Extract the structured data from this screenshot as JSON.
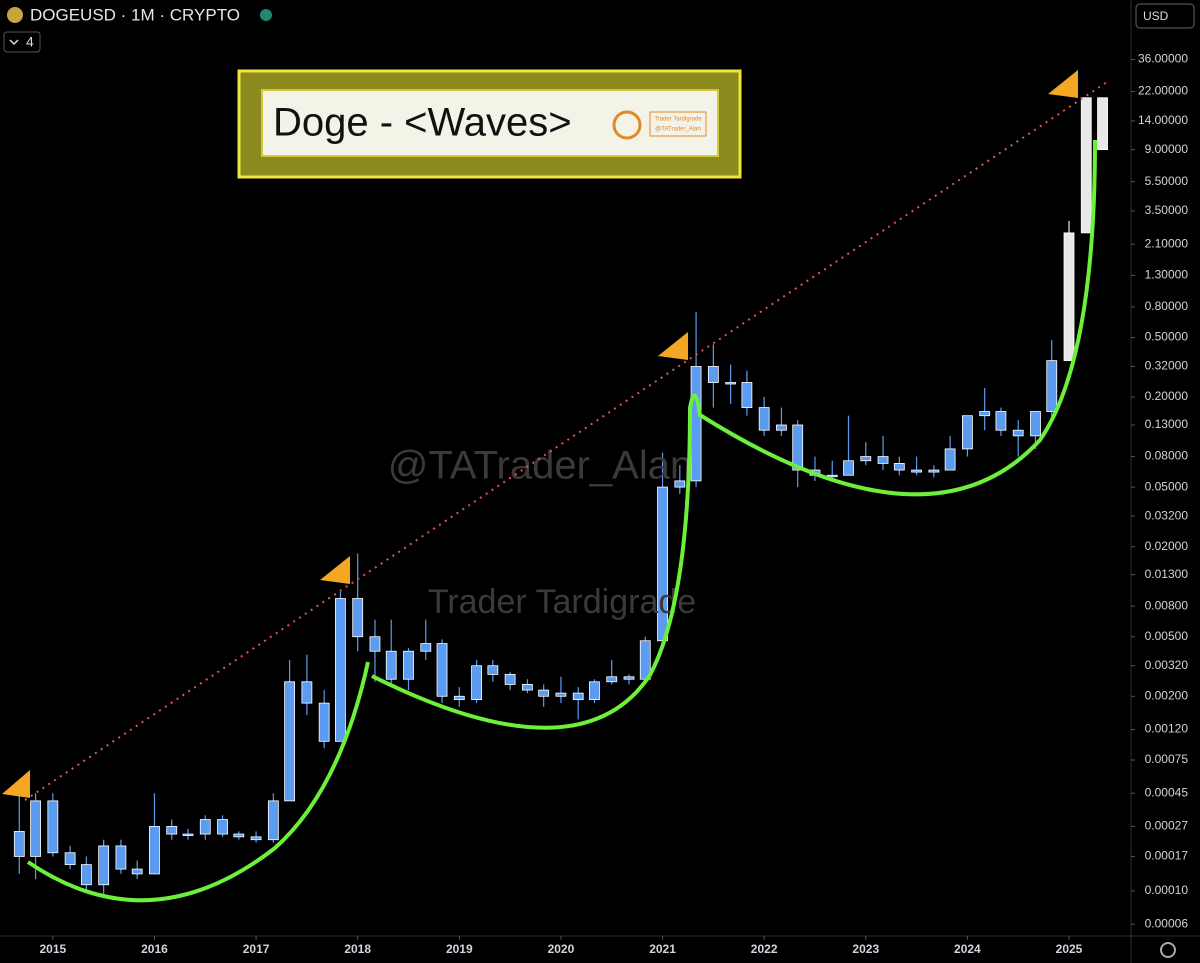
{
  "chart_data": {
    "type": "candlestick",
    "symbol": "DOGEUSD · 1M · CRYPTO",
    "interval_badge": "4",
    "currency": "USD",
    "title": "Doge - <Waves>",
    "logo_text": [
      "Trader Tardigrade",
      "@TATrader_Alan"
    ],
    "watermarks": [
      "@TATrader_Alan",
      "Trader Tardigrade"
    ],
    "log_scale": true,
    "xlim": [
      2014.48,
      2025.61
    ],
    "xticks": [
      2015,
      2016,
      2017,
      2018,
      2019,
      2020,
      2021,
      2022,
      2023,
      2024,
      2025
    ],
    "ylim": [
      5e-05,
      90
    ],
    "yticks": [
      {
        "value": 36,
        "label": "36.00000"
      },
      {
        "value": 22,
        "label": "22.00000"
      },
      {
        "value": 14,
        "label": "14.00000"
      },
      {
        "value": 9,
        "label": "9.00000"
      },
      {
        "value": 5.5,
        "label": "5.50000"
      },
      {
        "value": 3.5,
        "label": "3.50000"
      },
      {
        "value": 2.1,
        "label": "2.10000"
      },
      {
        "value": 1.3,
        "label": "1.30000"
      },
      {
        "value": 0.8,
        "label": "0.80000"
      },
      {
        "value": 0.5,
        "label": "0.50000"
      },
      {
        "value": 0.32,
        "label": "0.32000"
      },
      {
        "value": 0.2,
        "label": "0.20000"
      },
      {
        "value": 0.13,
        "label": "0.13000"
      },
      {
        "value": 0.08,
        "label": "0.08000"
      },
      {
        "value": 0.05,
        "label": "0.05000"
      },
      {
        "value": 0.032,
        "label": "0.03200"
      },
      {
        "value": 0.02,
        "label": "0.02000"
      },
      {
        "value": 0.013,
        "label": "0.01300"
      },
      {
        "value": 0.008,
        "label": "0.00800"
      },
      {
        "value": 0.005,
        "label": "0.00500"
      },
      {
        "value": 0.0032,
        "label": "0.00320"
      },
      {
        "value": 0.002,
        "label": "0.00200"
      },
      {
        "value": 0.0012,
        "label": "0.00120"
      },
      {
        "value": 0.00075,
        "label": "0.00075"
      },
      {
        "value": 0.00045,
        "label": "0.00045"
      },
      {
        "value": 0.00027,
        "label": "0.00027"
      },
      {
        "value": 0.00017,
        "label": "0.00017"
      },
      {
        "value": 0.0001,
        "label": "0.00010"
      },
      {
        "value": 6e-05,
        "label": "0.00006"
      }
    ],
    "series": [
      {
        "color": "#5b9cf0",
        "x": [
          2014.67,
          2014.83,
          2015.0,
          2015.17,
          2015.33,
          2015.5,
          2015.67,
          2015.83,
          2016.0,
          2016.17,
          2016.33,
          2016.5,
          2016.67,
          2016.83,
          2017.0,
          2017.17,
          2017.33,
          2017.5,
          2017.67,
          2017.83,
          2018.0,
          2018.17,
          2018.33,
          2018.5,
          2018.67,
          2018.83,
          2019.0,
          2019.17,
          2019.33,
          2019.5,
          2019.67,
          2019.83,
          2020.0,
          2020.17,
          2020.33,
          2020.5,
          2020.67,
          2020.83,
          2021.0,
          2021.17,
          2021.33,
          2021.5,
          2021.67,
          2021.83,
          2022.0,
          2022.17,
          2022.33,
          2022.5,
          2022.67,
          2022.83,
          2023.0,
          2023.17,
          2023.33,
          2023.5,
          2023.67,
          2023.83,
          2024.0,
          2024.17,
          2024.33,
          2024.5,
          2024.67,
          2024.83
        ],
        "open": [
          0.00025,
          0.00017,
          0.0004,
          0.00018,
          0.00015,
          0.00011,
          0.0002,
          0.00014,
          0.00013,
          0.00027,
          0.00024,
          0.00024,
          0.0003,
          0.00024,
          0.00023,
          0.00022,
          0.0004,
          0.0025,
          0.0018,
          0.001,
          0.009,
          0.005,
          0.004,
          0.0026,
          0.004,
          0.0045,
          0.002,
          0.0019,
          0.0032,
          0.0028,
          0.0024,
          0.0022,
          0.002,
          0.0021,
          0.0019,
          0.0025,
          0.0027,
          0.0026,
          0.0047,
          0.05,
          0.055,
          0.32,
          0.25,
          0.25,
          0.17,
          0.12,
          0.13,
          0.065,
          0.06,
          0.06,
          0.075,
          0.08,
          0.072,
          0.065,
          0.063,
          0.065,
          0.09,
          0.15,
          0.16,
          0.12,
          0.11,
          0.16
        ],
        "high": [
          0.00045,
          0.00045,
          0.00045,
          0.0002,
          0.00017,
          0.00022,
          0.00022,
          0.00016,
          0.00045,
          0.0003,
          0.00026,
          0.00032,
          0.00032,
          0.00025,
          0.00025,
          0.00045,
          0.0035,
          0.0038,
          0.0022,
          0.01,
          0.018,
          0.0065,
          0.0065,
          0.0042,
          0.0065,
          0.0048,
          0.0023,
          0.0035,
          0.0035,
          0.0029,
          0.0026,
          0.0024,
          0.0027,
          0.0023,
          0.0026,
          0.0035,
          0.0028,
          0.005,
          0.085,
          0.07,
          0.74,
          0.45,
          0.33,
          0.3,
          0.2,
          0.17,
          0.14,
          0.08,
          0.075,
          0.15,
          0.1,
          0.11,
          0.08,
          0.08,
          0.07,
          0.11,
          0.12,
          0.23,
          0.17,
          0.14,
          0.16,
          0.48
        ],
        "low": [
          0.00013,
          0.00012,
          0.00017,
          0.00014,
          0.0001,
          9e-05,
          0.00013,
          0.00012,
          0.00013,
          0.00022,
          0.00022,
          0.00022,
          0.00023,
          0.00022,
          0.00021,
          0.00021,
          0.0004,
          0.0015,
          0.0009,
          0.001,
          0.004,
          0.0025,
          0.0024,
          0.0022,
          0.0035,
          0.0018,
          0.0017,
          0.0018,
          0.0025,
          0.0022,
          0.0021,
          0.0017,
          0.0018,
          0.0014,
          0.0018,
          0.0024,
          0.0024,
          0.0025,
          0.0045,
          0.045,
          0.05,
          0.17,
          0.18,
          0.15,
          0.11,
          0.11,
          0.05,
          0.055,
          0.055,
          0.06,
          0.07,
          0.065,
          0.06,
          0.06,
          0.058,
          0.065,
          0.08,
          0.12,
          0.11,
          0.08,
          0.09,
          0.14
        ],
        "close": [
          0.00017,
          0.0004,
          0.00018,
          0.00015,
          0.00011,
          0.0002,
          0.00014,
          0.00013,
          0.00027,
          0.00024,
          0.00024,
          0.0003,
          0.00024,
          0.00023,
          0.00022,
          0.0004,
          0.0025,
          0.0018,
          0.001,
          0.009,
          0.005,
          0.004,
          0.0026,
          0.004,
          0.0045,
          0.002,
          0.0019,
          0.0032,
          0.0028,
          0.0024,
          0.0022,
          0.002,
          0.0021,
          0.0019,
          0.0025,
          0.0027,
          0.0026,
          0.0047,
          0.05,
          0.055,
          0.32,
          0.25,
          0.25,
          0.17,
          0.12,
          0.13,
          0.065,
          0.06,
          0.06,
          0.075,
          0.08,
          0.072,
          0.065,
          0.063,
          0.065,
          0.09,
          0.15,
          0.16,
          0.12,
          0.11,
          0.16,
          0.35
        ]
      },
      {
        "color": "#e8e8e8",
        "x": [
          2025.0,
          2025.17,
          2025.33
        ],
        "open": [
          0.35,
          2.5,
          20
        ],
        "high": [
          3,
          20,
          20
        ],
        "low": [
          0.35,
          2.5,
          9
        ],
        "close": [
          2.5,
          20,
          9
        ]
      }
    ]
  }
}
